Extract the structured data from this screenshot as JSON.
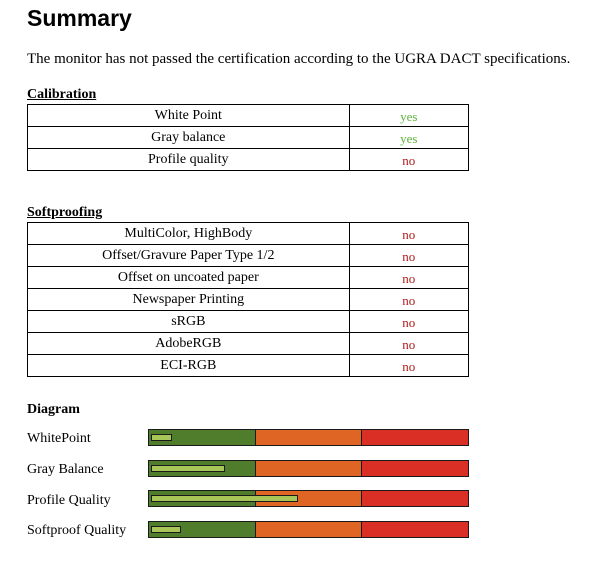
{
  "title": "Summary",
  "intro": "The monitor has not passed the certification according to the UGRA DACT specifications.",
  "calibration": {
    "heading": "Calibration",
    "rows": [
      {
        "name": "White Point",
        "value": "yes",
        "status": "pass",
        "status_color": "#5db33c"
      },
      {
        "name": "Gray balance",
        "value": "yes",
        "status": "pass",
        "status_color": "#5db33c"
      },
      {
        "name": "Profile quality",
        "value": "no",
        "status": "fail",
        "status_color": "#b11a1a"
      }
    ]
  },
  "softproofing": {
    "heading": "Softproofing",
    "rows": [
      {
        "name": "MultiColor, HighBody",
        "value": "no",
        "status": "fail"
      },
      {
        "name": "Offset/Gravure Paper Type 1/2",
        "value": "no",
        "status": "fail"
      },
      {
        "name": "Offset on uncoated paper",
        "value": "no",
        "status": "fail"
      },
      {
        "name": "Newspaper Printing",
        "value": "no",
        "status": "fail"
      },
      {
        "name": "sRGB",
        "value": "no",
        "status": "fail"
      },
      {
        "name": "AdobeRGB",
        "value": "no",
        "status": "fail"
      },
      {
        "name": "ECI-RGB",
        "value": "no",
        "status": "fail"
      }
    ]
  },
  "diagram": {
    "heading": "Diagram",
    "zone_colors": {
      "good": "#4f7d2b",
      "medium": "#df6525",
      "bad": "#d92f24",
      "indicator": "#a8c658"
    },
    "items": [
      {
        "label": "WhitePoint",
        "level": 0.06
      },
      {
        "label": "Gray Balance",
        "level": 0.23
      },
      {
        "label": "Profile Quality",
        "level": 0.46
      },
      {
        "label": "Softproof Quality",
        "level": 0.09
      }
    ]
  }
}
